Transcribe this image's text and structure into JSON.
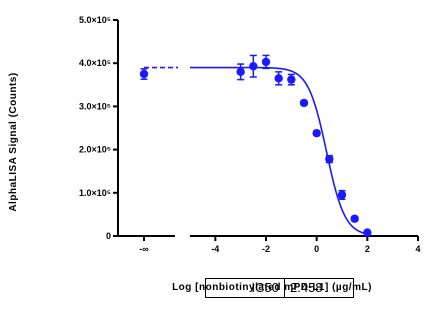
{
  "chart_data": {
    "type": "scatter",
    "title": "",
    "xlabel": "Log [nonbiotinylated mPD-L1] (µg/mL)",
    "ylabel": "AlphaLISA Signal (Counts)",
    "ylim": [
      0,
      500000
    ],
    "xlim_main": [
      -5,
      4
    ],
    "y_ticks": [
      {
        "value": 0,
        "label": "0"
      },
      {
        "value": 100000,
        "label": "1.0×10⁵"
      },
      {
        "value": 200000,
        "label": "2.0×10⁵"
      },
      {
        "value": 300000,
        "label": "3.0×10⁵"
      },
      {
        "value": 400000,
        "label": "4.0×10⁵"
      },
      {
        "value": 500000,
        "label": "5.0×10⁵"
      }
    ],
    "x_ticks": [
      {
        "value": -4,
        "label": "-4"
      },
      {
        "value": -2,
        "label": "-2"
      },
      {
        "value": 0,
        "label": "0"
      },
      {
        "value": 2,
        "label": "2"
      },
      {
        "value": 4,
        "label": "4"
      }
    ],
    "x_break_tick_label": "-∞",
    "zero_point": {
      "y": 375000,
      "err": 12000
    },
    "points": [
      {
        "x": -3.0,
        "y": 380000,
        "err": 18000
      },
      {
        "x": -2.5,
        "y": 393000,
        "err": 25000
      },
      {
        "x": -2.0,
        "y": 403000,
        "err": 15000
      },
      {
        "x": -1.5,
        "y": 365000,
        "err": 15000
      },
      {
        "x": -1.0,
        "y": 362000,
        "err": 12000
      },
      {
        "x": -0.5,
        "y": 308000,
        "err": 5000
      },
      {
        "x": 0.0,
        "y": 238000,
        "err": 5000
      },
      {
        "x": 0.5,
        "y": 178000,
        "err": 8000
      },
      {
        "x": 1.0,
        "y": 95000,
        "err": 10000
      },
      {
        "x": 1.5,
        "y": 40000,
        "err": 4000
      },
      {
        "x": 2.0,
        "y": 8000,
        "err": 3000
      }
    ],
    "fit": {
      "top": 390000,
      "bottom": 0,
      "log_ic50": 0.39,
      "hill": 1.2
    },
    "color": "#1a1aff",
    "table": {
      "label": "IC50",
      "value": "2.458"
    }
  }
}
